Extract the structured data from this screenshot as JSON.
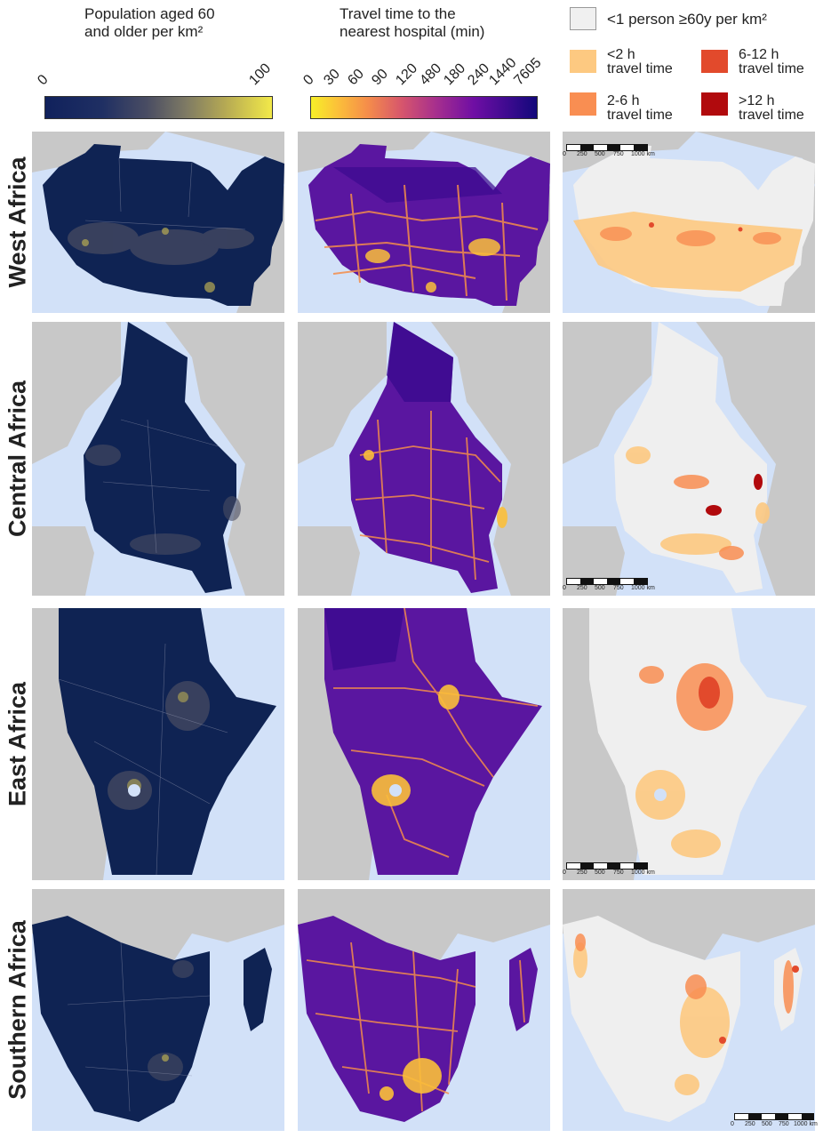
{
  "headers": {
    "population": "Population aged 60\nand older per km²",
    "travel": "Travel time to the\nnearest hospital (min)"
  },
  "population_scale": {
    "ticks": [
      "0",
      "100"
    ],
    "min": 0,
    "max": 100
  },
  "travel_scale": {
    "ticks": [
      "0",
      "30",
      "60",
      "90",
      "120",
      "480",
      "180",
      "240",
      "1440",
      "7605"
    ]
  },
  "legend": [
    {
      "label": "<1 person ≥60y per km²",
      "color": "#f0f0f0"
    },
    {
      "label": "<2 h\ntravel time",
      "color": "#fdc981"
    },
    {
      "label": "6-12 h\ntravel time",
      "color": "#e24a2c"
    },
    {
      "label": "2-6 h\ntravel time",
      "color": "#f98e52"
    },
    {
      "label": ">12 h\ntravel time",
      "color": "#b10a0d"
    }
  ],
  "regions": [
    {
      "name": "West Africa"
    },
    {
      "name": "Central Africa"
    },
    {
      "name": "East Africa"
    },
    {
      "name": "Southern Africa"
    }
  ],
  "scale_bar": {
    "labels": [
      "0",
      "250",
      "500",
      "750",
      "1000 km"
    ]
  },
  "colors": {
    "ocean": "#d2e1f8",
    "land": "#c8c8c8",
    "population_fill": "#0f2353",
    "travel_fill": "#5a16a0",
    "category_fill": "#efefef"
  }
}
